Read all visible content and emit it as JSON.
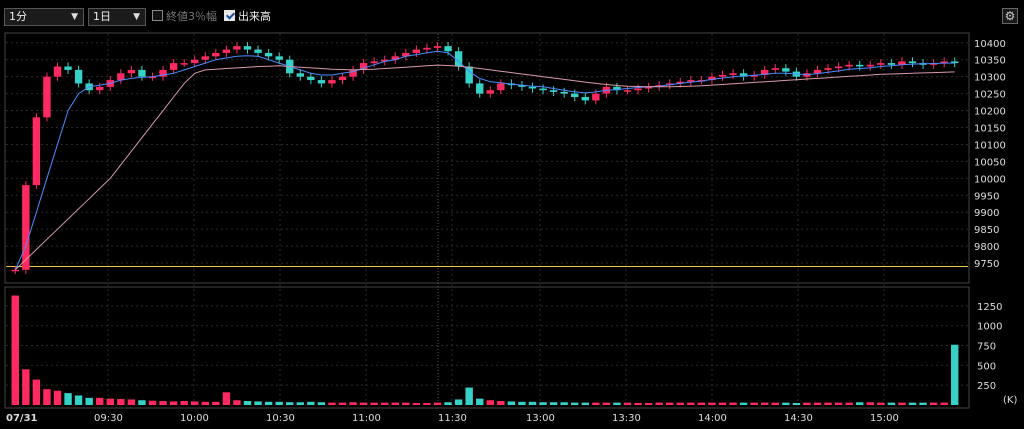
{
  "toolbar": {
    "interval": "1分",
    "period": "1日",
    "close3_label": "終値3％幅",
    "close3_checked": false,
    "volume_label": "出来高",
    "volume_checked": true,
    "settings_icon": "gear-icon"
  },
  "colors": {
    "up": "#ff2a62",
    "down": "#36d2c8",
    "ma_short": "#4a8cff",
    "ma_long": "#d99aa8",
    "baseline": "#e6c84a"
  },
  "chart_data": [
    {
      "type": "candlestick",
      "ylim": [
        9700,
        10420
      ],
      "y_ticks": [
        9750,
        9800,
        9850,
        9900,
        9950,
        10000,
        10050,
        10100,
        10150,
        10200,
        10250,
        10300,
        10350,
        10400
      ],
      "baseline_value": 9740,
      "series": [
        {
          "name": "close",
          "values": [
            9730,
            9980,
            10180,
            10300,
            10330,
            10320,
            10280,
            10260,
            10270,
            10290,
            10310,
            10320,
            10300,
            10300,
            10320,
            10340,
            10340,
            10350,
            10360,
            10370,
            10380,
            10390,
            10380,
            10370,
            10360,
            10350,
            10310,
            10300,
            10290,
            10280,
            10290,
            10300,
            10320,
            10340,
            10345,
            10350,
            10360,
            10370,
            10380,
            10385,
            10390,
            10375,
            10330,
            10280,
            10250,
            10260,
            10280,
            10275,
            10270,
            10265,
            10260,
            10255,
            10250,
            10240,
            10230,
            10250,
            10270,
            10260,
            10260,
            10265,
            10270,
            10275,
            10280,
            10285,
            10290,
            10290,
            10300,
            10305,
            10310,
            10300,
            10305,
            10320,
            10325,
            10315,
            10300,
            10310,
            10320,
            10325,
            10330,
            10335,
            10330,
            10335,
            10340,
            10335,
            10345,
            10340,
            10335,
            10340,
            10345,
            10340
          ]
        },
        {
          "name": "ma_short",
          "values": [
            9730,
            9800,
            9900,
            10000,
            10100,
            10200,
            10250,
            10270,
            10275,
            10280,
            10290,
            10295,
            10298,
            10300,
            10305,
            10310,
            10320,
            10330,
            10340,
            10350,
            10355,
            10360,
            10362,
            10360,
            10350,
            10340,
            10330,
            10320,
            10310,
            10305,
            10305,
            10310,
            10315,
            10325,
            10335,
            10345,
            10350,
            10360,
            10365,
            10370,
            10375,
            10370,
            10345,
            10315,
            10295,
            10285,
            10282,
            10278,
            10275,
            10272,
            10270,
            10265,
            10260,
            10255,
            10252,
            10255,
            10260,
            10262,
            10265,
            10268,
            10270,
            10272,
            10276,
            10280,
            10284,
            10287,
            10292,
            10296,
            10300,
            10302,
            10304,
            10307,
            10310,
            10310,
            10308,
            10306,
            10309,
            10313,
            10317,
            10322,
            10324,
            10326,
            10330,
            10332,
            10335,
            10337,
            10338,
            10339,
            10340,
            10340
          ]
        },
        {
          "name": "ma_long",
          "values": [
            9730,
            9760,
            9790,
            9820,
            9850,
            9880,
            9910,
            9940,
            9970,
            10000,
            10040,
            10080,
            10120,
            10160,
            10200,
            10240,
            10280,
            10310,
            10320,
            10322,
            10324,
            10326,
            10328,
            10330,
            10331,
            10332,
            10330,
            10328,
            10326,
            10324,
            10322,
            10321,
            10320,
            10321,
            10322,
            10324,
            10326,
            10328,
            10330,
            10332,
            10334,
            10333,
            10331,
            10328,
            10324,
            10320,
            10316,
            10312,
            10308,
            10304,
            10300,
            10296,
            10292,
            10288,
            10284,
            10280,
            10277,
            10274,
            10272,
            10271,
            10270,
            10270,
            10270,
            10271,
            10272,
            10273,
            10275,
            10277,
            10279,
            10281,
            10283,
            10285,
            10287,
            10289,
            10291,
            10293,
            10295,
            10297,
            10299,
            10301,
            10303,
            10305,
            10307,
            10308,
            10309,
            10310,
            10311,
            10312,
            10313,
            10314
          ]
        }
      ]
    },
    {
      "type": "bar",
      "ylim": [
        0,
        1450
      ],
      "y_ticks": [
        250,
        500,
        750,
        1000,
        1250
      ],
      "unit_label": "(K)",
      "values": [
        1380,
        450,
        320,
        200,
        180,
        150,
        120,
        90,
        90,
        80,
        75,
        70,
        60,
        55,
        50,
        45,
        50,
        45,
        40,
        40,
        160,
        60,
        50,
        45,
        40,
        40,
        35,
        35,
        40,
        35,
        30,
        30,
        35,
        30,
        30,
        30,
        30,
        30,
        25,
        25,
        30,
        35,
        70,
        220,
        80,
        60,
        50,
        45,
        40,
        40,
        35,
        35,
        35,
        30,
        30,
        30,
        30,
        30,
        30,
        25,
        25,
        30,
        30,
        30,
        30,
        30,
        30,
        30,
        30,
        30,
        30,
        30,
        30,
        30,
        25,
        30,
        30,
        30,
        30,
        30,
        35,
        35,
        30,
        30,
        30,
        30,
        30,
        30,
        30,
        760
      ]
    }
  ],
  "x_ticks": [
    "07/31",
    "09:30",
    "10:00",
    "10:30",
    "11:00",
    "11:30",
    "13:00",
    "13:30",
    "14:00",
    "14:30",
    "15:00"
  ]
}
